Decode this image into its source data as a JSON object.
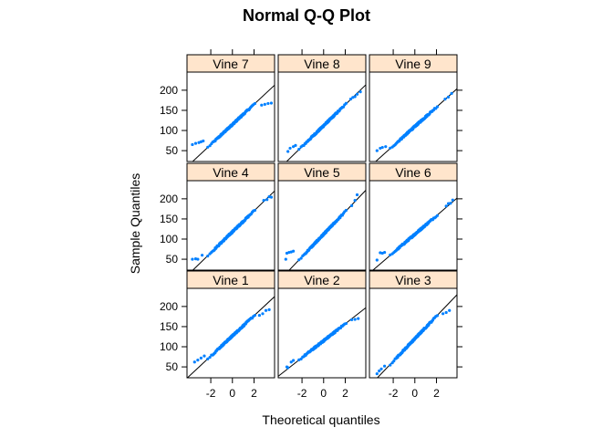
{
  "chart_data": {
    "type": "scatter",
    "title": "Normal Q-Q Plot",
    "xlabel": "Theoretical quantiles",
    "ylabel": "Sample Quantiles",
    "xticks": [
      -2,
      0,
      2
    ],
    "yticks": [
      50,
      100,
      150,
      200
    ],
    "xlim": [
      -4.2,
      3.9
    ],
    "ylim": [
      23,
      245
    ],
    "strip_color": "#ffe5cc",
    "point_color": "#0080ff",
    "line_color": "#000000",
    "panels": [
      {
        "name": "Vine 7",
        "grid_row": 0,
        "grid_col": 0,
        "line": {
          "intercept": 115,
          "slope": 25
        },
        "tail_low": [
          [
            -3.7,
            65
          ],
          [
            -3.4,
            68
          ],
          [
            -3.1,
            70
          ],
          [
            -2.9,
            72
          ],
          [
            -2.7,
            74
          ]
        ],
        "tail_high": [
          [
            2.7,
            163
          ],
          [
            3.0,
            165
          ],
          [
            3.3,
            167
          ],
          [
            3.6,
            168
          ]
        ]
      },
      {
        "name": "Vine 8",
        "grid_row": 0,
        "grid_col": 1,
        "line": {
          "intercept": 112,
          "slope": 26
        },
        "tail_low": [
          [
            -3.3,
            48
          ],
          [
            -3.1,
            56
          ],
          [
            -2.8,
            60
          ],
          [
            -2.6,
            63
          ]
        ],
        "tail_high": [
          [
            2.5,
            178
          ],
          [
            2.7,
            182
          ],
          [
            2.9,
            184
          ],
          [
            3.1,
            190
          ],
          [
            3.4,
            196
          ]
        ]
      },
      {
        "name": "Vine 9",
        "grid_row": 0,
        "grid_col": 2,
        "line": {
          "intercept": 110,
          "slope": 24
        },
        "tail_low": [
          [
            -3.5,
            50
          ],
          [
            -3.2,
            56
          ],
          [
            -3.0,
            58
          ],
          [
            -2.7,
            60
          ]
        ],
        "tail_high": [
          [
            2.8,
            178
          ],
          [
            3.1,
            183
          ],
          [
            3.4,
            192
          ]
        ]
      },
      {
        "name": "Vine 4",
        "grid_row": 1,
        "grid_col": 0,
        "line": {
          "intercept": 118,
          "slope": 26
        },
        "tail_low": [
          [
            -3.7,
            50
          ],
          [
            -3.4,
            51
          ],
          [
            -3.2,
            50
          ],
          [
            -2.8,
            60
          ]
        ],
        "tail_high": [
          [
            2.9,
            196
          ],
          [
            3.2,
            198
          ],
          [
            3.4,
            205
          ],
          [
            3.6,
            204
          ]
        ]
      },
      {
        "name": "Vine 5",
        "grid_row": 1,
        "grid_col": 1,
        "line": {
          "intercept": 112,
          "slope": 28
        },
        "tail_low": [
          [
            -3.5,
            50
          ],
          [
            -3.4,
            65
          ],
          [
            -3.2,
            67
          ],
          [
            -3.0,
            68
          ],
          [
            -2.8,
            70
          ]
        ],
        "tail_high": [
          [
            2.6,
            183
          ],
          [
            2.9,
            196
          ],
          [
            3.1,
            210
          ]
        ]
      },
      {
        "name": "Vine 6",
        "grid_row": 1,
        "grid_col": 2,
        "line": {
          "intercept": 112,
          "slope": 23
        },
        "tail_low": [
          [
            -3.5,
            48
          ],
          [
            -3.2,
            66
          ],
          [
            -3.0,
            65
          ],
          [
            -2.8,
            67
          ]
        ],
        "tail_high": [
          [
            2.9,
            182
          ],
          [
            3.1,
            188
          ],
          [
            3.3,
            189
          ],
          [
            3.5,
            197
          ]
        ]
      },
      {
        "name": "Vine 1",
        "grid_row": 2,
        "grid_col": 0,
        "line": {
          "intercept": 127,
          "slope": 25
        },
        "tail_low": [
          [
            -3.5,
            62
          ],
          [
            -3.2,
            67
          ],
          [
            -2.9,
            72
          ],
          [
            -2.6,
            77
          ]
        ],
        "tail_high": [
          [
            2.5,
            178
          ],
          [
            2.8,
            182
          ],
          [
            3.1,
            190
          ],
          [
            3.4,
            192
          ]
        ]
      },
      {
        "name": "Vine 2",
        "grid_row": 2,
        "grid_col": 1,
        "line": {
          "intercept": 115,
          "slope": 21
        },
        "tail_low": [
          [
            -3.4,
            50
          ],
          [
            -3.3,
            48
          ],
          [
            -3.0,
            62
          ],
          [
            -2.8,
            66
          ]
        ],
        "tail_high": [
          [
            2.6,
            167
          ],
          [
            2.9,
            168
          ],
          [
            3.2,
            170
          ]
        ]
      },
      {
        "name": "Vine 3",
        "grid_row": 2,
        "grid_col": 2,
        "line": {
          "intercept": 120,
          "slope": 28
        },
        "tail_low": [
          [
            -3.5,
            33
          ],
          [
            -3.3,
            40
          ],
          [
            -3.1,
            45
          ],
          [
            -2.8,
            52
          ]
        ],
        "tail_high": [
          [
            2.6,
            182
          ],
          [
            2.9,
            185
          ],
          [
            3.2,
            190
          ]
        ]
      }
    ]
  }
}
